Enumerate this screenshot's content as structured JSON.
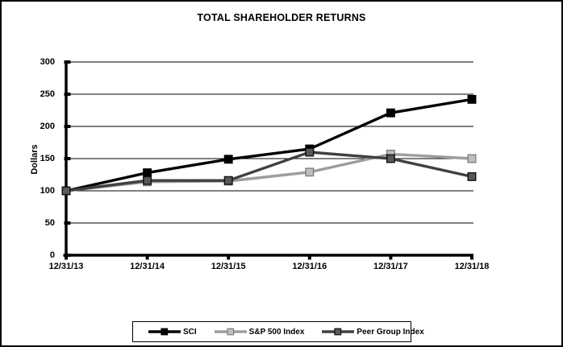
{
  "title": "TOTAL SHAREHOLDER RETURNS",
  "chart_data": {
    "type": "line",
    "title": "TOTAL SHAREHOLDER RETURNS",
    "xlabel": "",
    "ylabel": "Dollars",
    "ylim": [
      0,
      300
    ],
    "ytick_interval": 50,
    "yticks": [
      0,
      50,
      100,
      150,
      200,
      250,
      300
    ],
    "grid": "horizontal",
    "legend_position": "bottom",
    "categories": [
      "12/31/13",
      "12/31/14",
      "12/31/15",
      "12/31/16",
      "12/31/17",
      "12/31/18"
    ],
    "series": [
      {
        "name": "SCI",
        "values": [
          100,
          128,
          149,
          165,
          221,
          242
        ],
        "color": "#000000",
        "marker_fill": "#000000",
        "marker_border": "#000000"
      },
      {
        "name": "S&P 500 Index",
        "values": [
          100,
          114,
          115,
          129,
          157,
          150
        ],
        "color": "#9d9d9d",
        "marker_fill": "#bfbfbf",
        "marker_border": "#7f7f7f"
      },
      {
        "name": "Peer Group Index",
        "values": [
          100,
          116,
          116,
          160,
          150,
          122
        ],
        "color": "#404040",
        "marker_fill": "#595959",
        "marker_border": "#111111"
      }
    ]
  }
}
